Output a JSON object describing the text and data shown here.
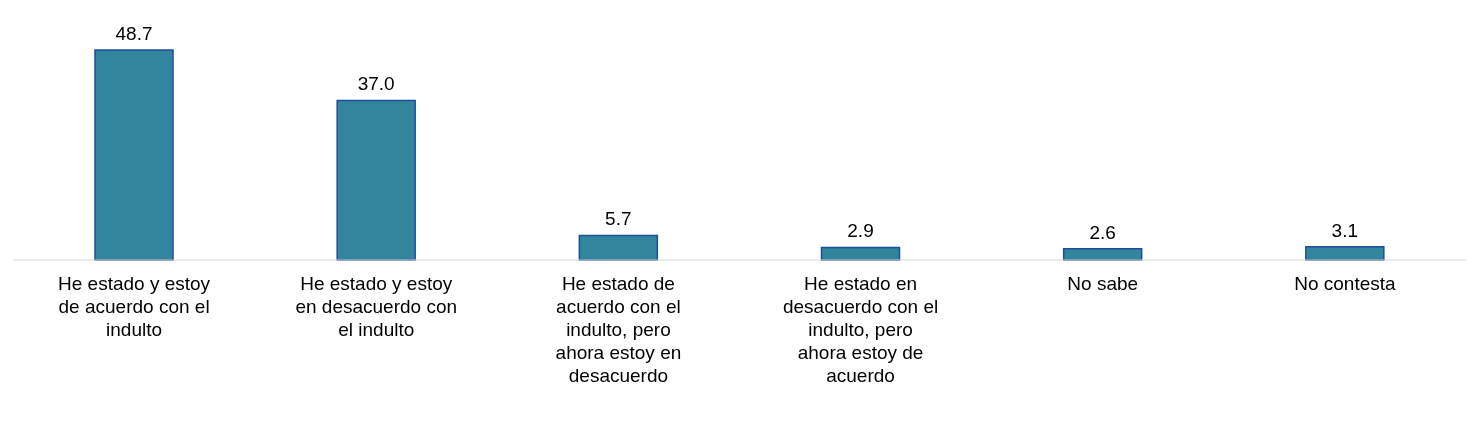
{
  "chart_data": {
    "type": "bar",
    "categories": [
      "He estado y estoy de acuerdo con el indulto",
      "He estado y estoy en desacuerdo con el indulto",
      "He estado de acuerdo con el indulto, pero ahora estoy en desacuerdo",
      "He estado en desacuerdo con el indulto, pero ahora estoy de acuerdo",
      "No sabe",
      "No contesta"
    ],
    "values": [
      48.7,
      37.0,
      5.7,
      2.9,
      2.6,
      3.1
    ],
    "value_labels": [
      "48.7",
      "37.0",
      "5.7",
      "2.9",
      "2.6",
      "3.1"
    ],
    "color": "#31859c",
    "grid": false,
    "legend": false
  }
}
